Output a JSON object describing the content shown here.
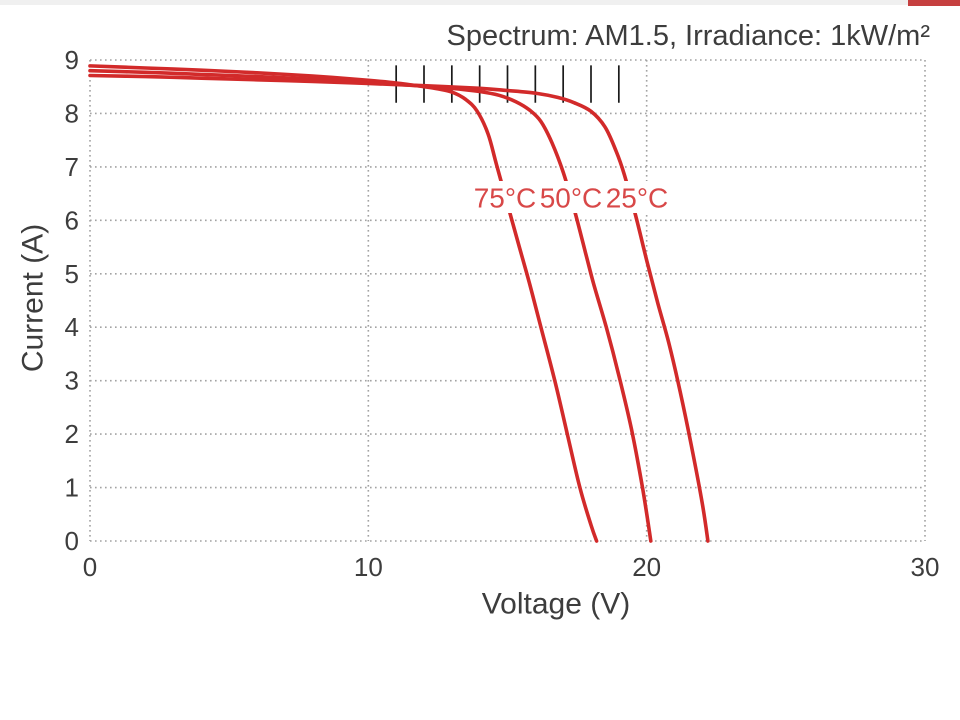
{
  "decor": {
    "top_strip_color": "#f0f0f0",
    "top_accent_color": "#c64040"
  },
  "colors": {
    "curve": "#d22a2a",
    "curve_label": "#d84848",
    "grid": "#a2a2a2",
    "text": "#3d3d3d",
    "marker": "#1a1a1a",
    "background": "#ffffff"
  },
  "chart_data": {
    "type": "line",
    "title": "Spectrum: AM1.5, Irradiance: 1kW/m²",
    "xlabel": "Voltage (V)",
    "ylabel": "Current (A)",
    "xlim": [
      0,
      30
    ],
    "ylim": [
      0,
      9
    ],
    "x_ticks": [
      "0",
      "10",
      "20",
      "30"
    ],
    "y_ticks": [
      "0",
      "1",
      "2",
      "3",
      "4",
      "5",
      "6",
      "7",
      "8",
      "9"
    ],
    "x_gridlines": [
      0,
      10,
      20,
      30
    ],
    "y_gridlines": [
      0,
      1,
      2,
      3,
      4,
      5,
      6,
      7,
      8,
      9
    ],
    "grid": "dotted",
    "legend_position": "inline-labels",
    "series": [
      {
        "name": "75°C",
        "color": "#d22a2a",
        "isc": 8.89,
        "voc": 18.2,
        "points": [
          [
            0,
            8.89
          ],
          [
            2,
            8.85
          ],
          [
            4,
            8.81
          ],
          [
            6,
            8.76
          ],
          [
            8,
            8.7
          ],
          [
            10,
            8.62
          ],
          [
            11,
            8.57
          ],
          [
            12,
            8.5
          ],
          [
            12.5,
            8.46
          ],
          [
            13,
            8.4
          ],
          [
            13.5,
            8.26
          ],
          [
            13.9,
            8.05
          ],
          [
            14.3,
            7.62
          ],
          [
            14.6,
            7.05
          ],
          [
            15.0,
            6.3
          ],
          [
            15.4,
            5.55
          ],
          [
            15.8,
            4.8
          ],
          [
            16.2,
            4.0
          ],
          [
            16.7,
            3.0
          ],
          [
            17.15,
            2.0
          ],
          [
            17.6,
            1.0
          ],
          [
            18.0,
            0.3
          ],
          [
            18.2,
            0
          ]
        ]
      },
      {
        "name": "50°C",
        "color": "#d22a2a",
        "isc": 8.8,
        "voc": 20.15,
        "points": [
          [
            0,
            8.8
          ],
          [
            2,
            8.77
          ],
          [
            4,
            8.73
          ],
          [
            6,
            8.69
          ],
          [
            8,
            8.64
          ],
          [
            10,
            8.58
          ],
          [
            12,
            8.51
          ],
          [
            13,
            8.47
          ],
          [
            14,
            8.41
          ],
          [
            14.7,
            8.34
          ],
          [
            15.3,
            8.22
          ],
          [
            15.8,
            8.06
          ],
          [
            16.2,
            7.85
          ],
          [
            16.6,
            7.45
          ],
          [
            17.0,
            6.9
          ],
          [
            17.4,
            6.2
          ],
          [
            17.8,
            5.4
          ],
          [
            18.1,
            4.8
          ],
          [
            18.55,
            4.0
          ],
          [
            19.0,
            3.1
          ],
          [
            19.45,
            2.1
          ],
          [
            19.85,
            1.0
          ],
          [
            20.15,
            0
          ]
        ]
      },
      {
        "name": "25°C",
        "color": "#d22a2a",
        "isc": 8.71,
        "voc": 22.2,
        "points": [
          [
            0,
            8.71
          ],
          [
            2,
            8.69
          ],
          [
            4,
            8.66
          ],
          [
            6,
            8.63
          ],
          [
            8,
            8.6
          ],
          [
            10,
            8.56
          ],
          [
            12,
            8.52
          ],
          [
            14,
            8.47
          ],
          [
            15,
            8.43
          ],
          [
            16,
            8.38
          ],
          [
            16.8,
            8.3
          ],
          [
            17.4,
            8.2
          ],
          [
            18.0,
            8.04
          ],
          [
            18.5,
            7.75
          ],
          [
            18.9,
            7.3
          ],
          [
            19.2,
            6.85
          ],
          [
            19.6,
            6.1
          ],
          [
            20.0,
            5.25
          ],
          [
            20.4,
            4.45
          ],
          [
            20.8,
            3.7
          ],
          [
            21.2,
            2.8
          ],
          [
            21.6,
            1.8
          ],
          [
            22.0,
            0.7
          ],
          [
            22.2,
            0
          ]
        ]
      }
    ],
    "marker_overlay": {
      "description": "short vertical black hash marks crossing the flat part of the curves",
      "voltages": [
        11,
        12,
        13,
        14,
        15,
        16,
        17,
        18,
        19
      ],
      "i_top": 8.9,
      "i_bottom": 8.2
    }
  }
}
